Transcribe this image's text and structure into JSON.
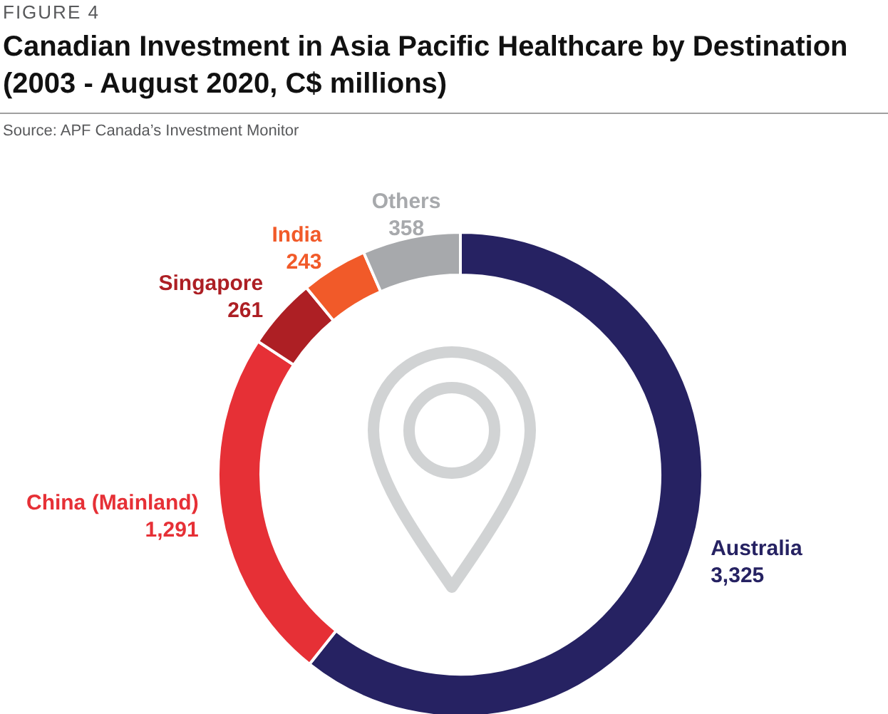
{
  "chart_data": {
    "type": "donut",
    "title": "Canadian Investment in Asia Pacific Healthcare by Destination (2003 - August 2020, C$ millions)",
    "annotations": [
      "FIGURE 4",
      "Source: APF Canada’s Investment Monitor"
    ],
    "categories": [
      "Australia",
      "China (Mainland)",
      "Singapore",
      "India",
      "Others"
    ],
    "values": [
      3325,
      1291,
      261,
      243,
      358
    ],
    "value_labels": [
      "3,325",
      "1,291",
      "261",
      "243",
      "358"
    ],
    "colors": [
      "#262262",
      "#e63036",
      "#ad1f24",
      "#f15a29",
      "#a7a9ac"
    ]
  }
}
